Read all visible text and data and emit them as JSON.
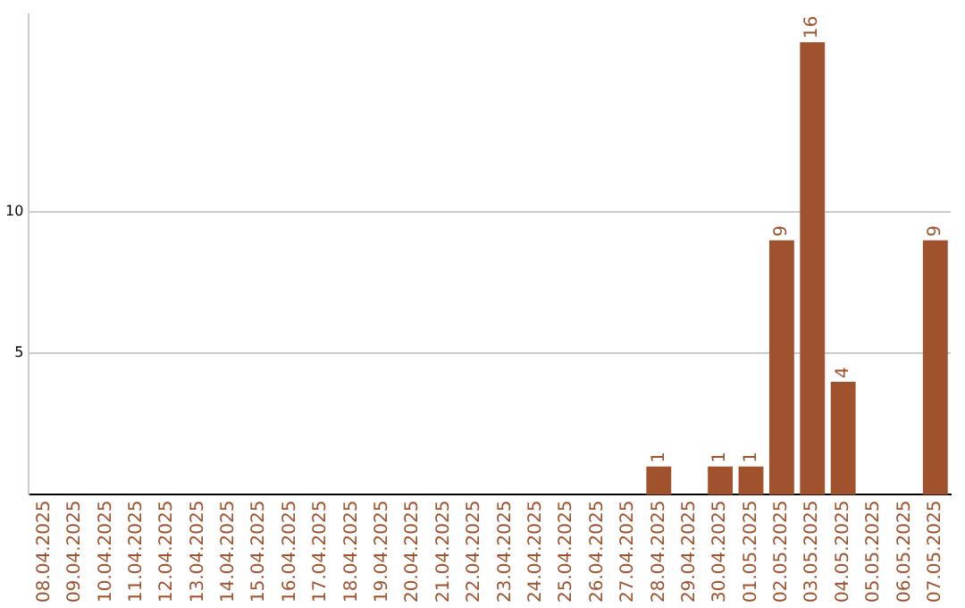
{
  "chart_data": {
    "type": "bar",
    "categories": [
      "08.04.2025",
      "09.04.2025",
      "10.04.2025",
      "11.04.2025",
      "12.04.2025",
      "13.04.2025",
      "14.04.2025",
      "15.04.2025",
      "16.04.2025",
      "17.04.2025",
      "18.04.2025",
      "19.04.2025",
      "20.04.2025",
      "21.04.2025",
      "22.04.2025",
      "23.04.2025",
      "24.04.2025",
      "25.04.2025",
      "26.04.2025",
      "27.04.2025",
      "28.04.2025",
      "29.04.2025",
      "30.04.2025",
      "01.05.2025",
      "02.05.2025",
      "03.05.2025",
      "04.05.2025",
      "05.05.2025",
      "06.05.2025",
      "07.05.2025"
    ],
    "values": [
      0,
      0,
      0,
      0,
      0,
      0,
      0,
      0,
      0,
      0,
      0,
      0,
      0,
      0,
      0,
      0,
      0,
      0,
      0,
      0,
      1,
      0,
      1,
      1,
      9,
      16,
      4,
      0,
      0,
      9
    ],
    "value_labels": [
      null,
      null,
      null,
      null,
      null,
      null,
      null,
      null,
      null,
      null,
      null,
      null,
      null,
      null,
      null,
      null,
      null,
      null,
      null,
      null,
      "1",
      null,
      "1",
      "1",
      "9",
      "16",
      "4",
      null,
      null,
      "9"
    ],
    "color": "#a0522d",
    "ylim": [
      0,
      17
    ],
    "yticks": [
      5,
      10
    ],
    "grid": "y"
  }
}
